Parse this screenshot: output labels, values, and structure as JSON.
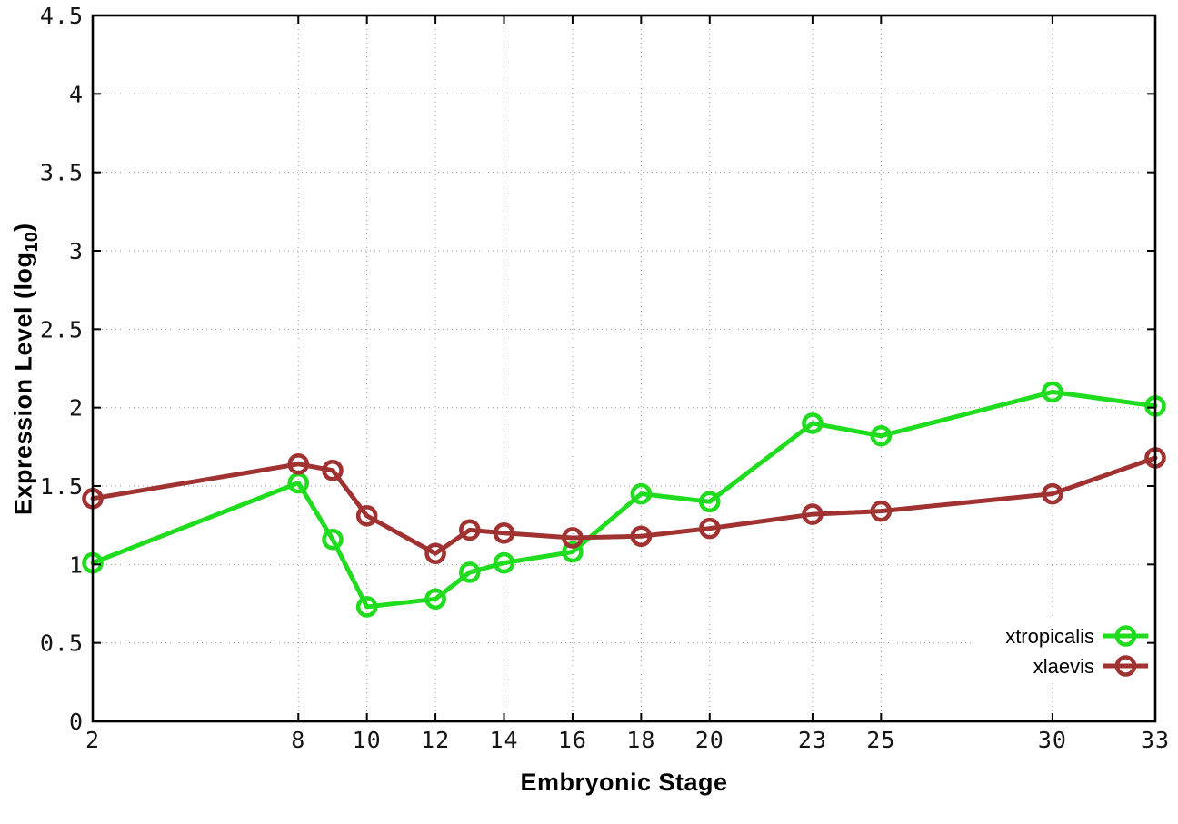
{
  "chart_data": {
    "type": "line",
    "title": "",
    "xlabel": "Embryonic Stage",
    "ylabel": "Expression Level (log10)",
    "ylabel_prefix": "Expression Level (log",
    "ylabel_sub": "10",
    "ylabel_suffix": ")",
    "xlim": [
      2,
      33
    ],
    "ylim": [
      0,
      4.5
    ],
    "x_ticks": [
      2,
      8,
      10,
      12,
      14,
      16,
      18,
      20,
      23,
      25,
      30,
      33
    ],
    "x_tick_labels": [
      "2",
      "8",
      "10",
      "12",
      "14",
      "16",
      "18",
      "20",
      "23",
      "25",
      "30",
      "33"
    ],
    "y_ticks": [
      0,
      0.5,
      1,
      1.5,
      2,
      2.5,
      3,
      3.5,
      4,
      4.5
    ],
    "y_tick_labels": [
      "0",
      "0.5",
      "1",
      "1.5",
      "2",
      "2.5",
      "3",
      "3.5",
      "4",
      "4.5"
    ],
    "grid": true,
    "marker": "open-circle",
    "legend_position": "inside-bottom-right",
    "x": [
      2,
      8,
      9,
      10,
      12,
      13,
      14,
      16,
      18,
      20,
      23,
      25,
      30,
      33
    ],
    "series": [
      {
        "name": "xtropicalis",
        "color": "#1fdc1f",
        "values": [
          1.01,
          1.52,
          1.16,
          0.73,
          0.78,
          0.95,
          1.01,
          1.08,
          1.45,
          1.4,
          1.9,
          1.82,
          2.1,
          2.01
        ]
      },
      {
        "name": "xlaevis",
        "color": "#a03232",
        "values": [
          1.42,
          1.64,
          1.6,
          1.31,
          1.07,
          1.22,
          1.2,
          1.17,
          1.18,
          1.23,
          1.32,
          1.34,
          1.45,
          1.68
        ]
      }
    ]
  },
  "colors": {
    "background": "#ffffff",
    "border": "#000000",
    "grid": "#9a9a9a",
    "tick_text": "#151515",
    "xtropicalis": "#1fdc1f",
    "xlaevis": "#a03232"
  }
}
